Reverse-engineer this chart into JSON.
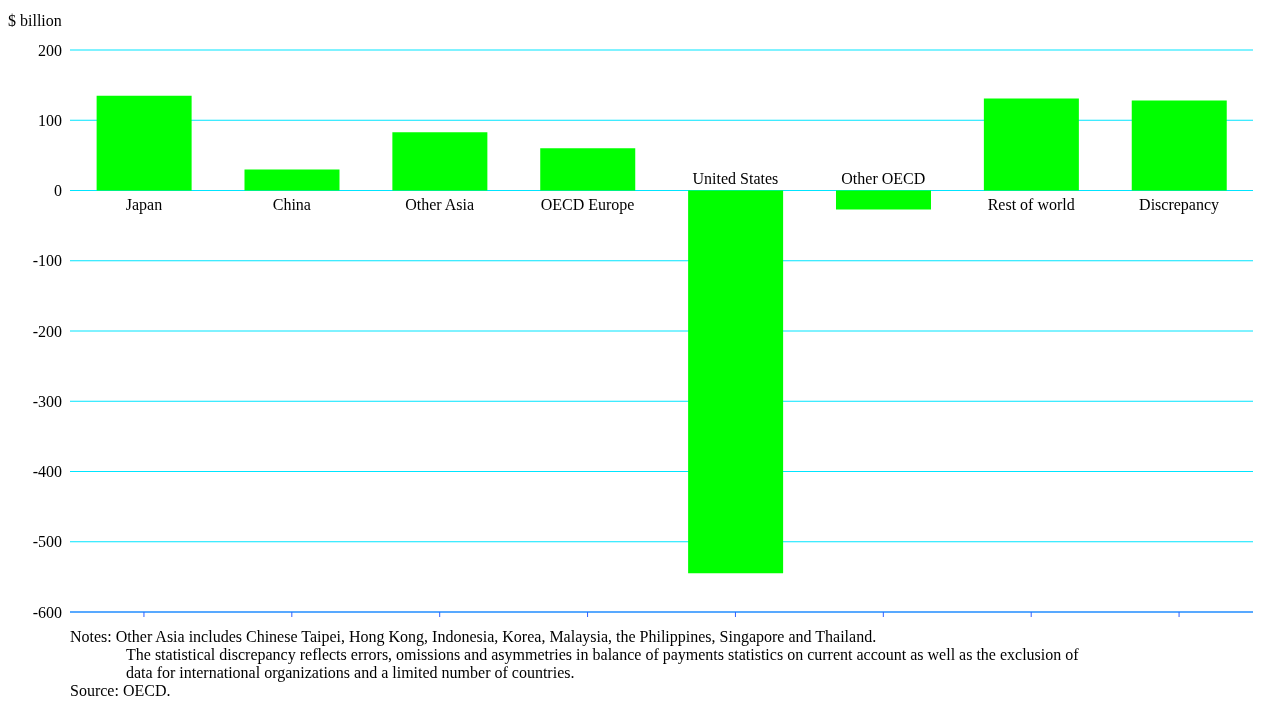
{
  "chart_data": {
    "type": "bar",
    "ylabel": "$ billion",
    "categories": [
      "Japan",
      "China",
      "Other Asia",
      "OECD Europe",
      "United States",
      "Other OECD",
      "Rest of world",
      "Discrepancy"
    ],
    "values": [
      135,
      30,
      83,
      60,
      -545,
      -27,
      131,
      128
    ],
    "color": "#00ff00",
    "ylim": [
      -600,
      200
    ],
    "yticks": [
      -600,
      -500,
      -400,
      -300,
      -200,
      -100,
      0,
      100,
      200
    ],
    "grid": "y",
    "annotations": [
      "Notes: Other Asia includes Chinese Taipei, Hong Kong, Indonesia, Korea, Malaysia, the Philippines, Singapore and Thailand.",
      "The statistical discrepancy reflects errors, omissions and asymmetries in balance of payments statistics on current account as well as the exclusion of data for international organizations and a limited number of countries.",
      "Source: OECD."
    ]
  }
}
